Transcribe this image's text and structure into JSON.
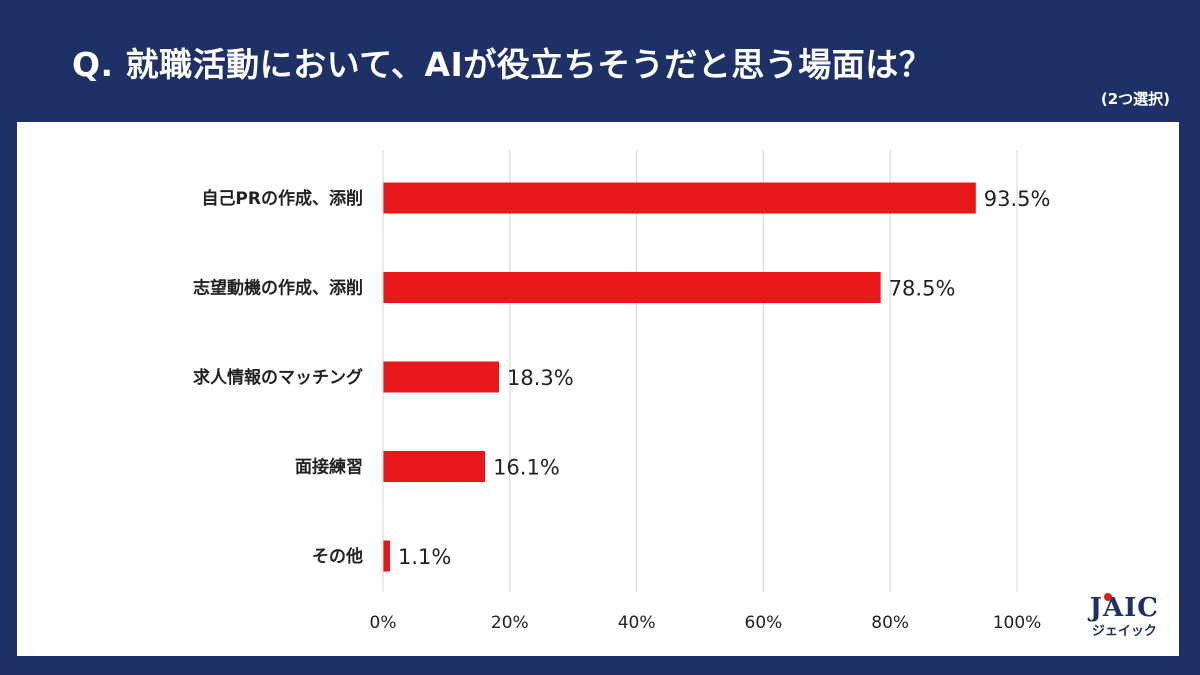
{
  "header": {
    "question": "Q. 就職活動において、AIが役立ちそうだと思う場面は？",
    "note": "(2つ選択)"
  },
  "logo": {
    "main": "JAIC",
    "sub": "ジェイック"
  },
  "chart_data": {
    "type": "bar",
    "orientation": "horizontal",
    "categories": [
      "自己PRの作成、添削",
      "志望動機の作成、添削",
      "求人情報のマッチング",
      "面接練習",
      "その他"
    ],
    "values": [
      93.5,
      78.5,
      18.3,
      16.1,
      1.1
    ],
    "value_labels": [
      "93.5%",
      "78.5%",
      "18.3%",
      "16.1%",
      "1.1%"
    ],
    "xlim": [
      0,
      100
    ],
    "x_ticks": [
      0,
      20,
      40,
      60,
      80,
      100
    ],
    "x_tick_labels": [
      "0%",
      "20%",
      "40%",
      "60%",
      "80%",
      "100%"
    ],
    "grid": true,
    "bar_color": "#e8171a",
    "title": "",
    "xlabel": "",
    "ylabel": ""
  }
}
